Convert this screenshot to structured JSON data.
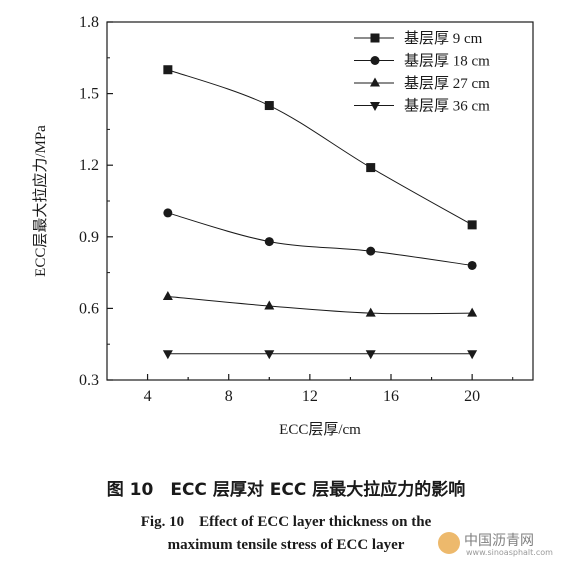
{
  "chart_data": {
    "type": "line",
    "title": "",
    "xlabel": "ECC层厚/cm",
    "ylabel": "ECC层最大拉应力/MPa",
    "xlim": [
      2,
      23
    ],
    "ylim": [
      0.3,
      1.8
    ],
    "x_ticks": [
      "4",
      "8",
      "12",
      "16",
      "20"
    ],
    "y_ticks": [
      "0.3",
      "0.6",
      "0.9",
      "1.2",
      "1.5",
      "1.8"
    ],
    "x": [
      5,
      10,
      15,
      20
    ],
    "series": [
      {
        "name": "基层厚 9 cm",
        "marker": "square",
        "values": [
          1.6,
          1.45,
          1.19,
          0.95
        ]
      },
      {
        "name": "基层厚 18 cm",
        "marker": "circle",
        "values": [
          1.0,
          0.88,
          0.84,
          0.78
        ]
      },
      {
        "name": "基层厚 27 cm",
        "marker": "triangle-up",
        "values": [
          0.65,
          0.61,
          0.58,
          0.58
        ]
      },
      {
        "name": "基层厚 36 cm",
        "marker": "triangle-down",
        "values": [
          0.41,
          0.41,
          0.41,
          0.41
        ]
      }
    ],
    "legend_position": "top-right",
    "grid": false,
    "line_color": "#1a1a1a"
  },
  "caption": {
    "zh": "图 10　ECC 层厚对 ECC 层最大拉应力的影响",
    "en_line1": "Fig. 10　Effect of ECC layer thickness on the",
    "en_line2": "maximum tensile stress of ECC layer"
  },
  "watermark": {
    "title": "中国沥青网",
    "url": "www.sinoasphalt.com"
  }
}
